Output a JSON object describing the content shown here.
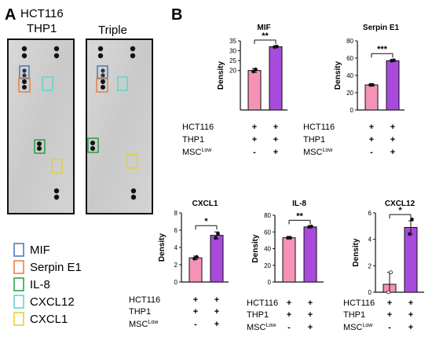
{
  "panels": {
    "a_label": "A",
    "b_label": "B"
  },
  "blots": [
    {
      "title_lines": [
        "HCT116",
        "THP1"
      ]
    },
    {
      "title_lines": [
        "Triple"
      ]
    }
  ],
  "legend": {
    "items": [
      {
        "label": "MIF",
        "color": "#4a7fc1"
      },
      {
        "label": "Serpin E1",
        "color": "#e8834a"
      },
      {
        "label": "IL-8",
        "color": "#2ea44f"
      },
      {
        "label": "CXCL12",
        "color": "#5fd6d6"
      },
      {
        "label": "CXCL1",
        "color": "#e6cf3c"
      }
    ]
  },
  "condition_rows": [
    {
      "label": "HCT116",
      "values": [
        "+",
        "+"
      ]
    },
    {
      "label": "THP1",
      "values": [
        "+",
        "+"
      ]
    },
    {
      "label": "MSC",
      "superscript": "Low",
      "values": [
        "-",
        "+"
      ]
    }
  ],
  "colors": {
    "bar_1": "#f592b8",
    "bar_2": "#a84bdc"
  },
  "chart_data": [
    {
      "type": "bar",
      "title": "MIF",
      "ylabel": "Density",
      "categories": [
        "HCT116 THP1",
        "HCT116 THP1 MSC Low"
      ],
      "values": [
        20,
        32
      ],
      "error": [
        1,
        0.2
      ],
      "points": [
        [
          19.5,
          20.5
        ],
        [
          31.9,
          32.1
        ]
      ],
      "ylim": [
        0,
        35
      ],
      "yticks": [
        20,
        25,
        30,
        35
      ],
      "significance": "**"
    },
    {
      "type": "bar",
      "title": "Serpin E1",
      "ylabel": "Density",
      "categories": [
        "HCT116 THP1",
        "HCT116 THP1 MSC Low"
      ],
      "values": [
        29,
        57
      ],
      "error": [
        0.5,
        1
      ],
      "points": [
        [
          29,
          29
        ],
        [
          57,
          57.5
        ]
      ],
      "ylim": [
        0,
        80
      ],
      "yticks": [
        0,
        20,
        40,
        60,
        80
      ],
      "significance": "***"
    },
    {
      "type": "bar",
      "title": "CXCL1",
      "ylabel": "Density",
      "categories": [
        "HCT116 THP1",
        "HCT116 THP1 MSC Low"
      ],
      "values": [
        2.8,
        5.4
      ],
      "error": [
        0.2,
        0.4
      ],
      "points": [
        [
          2.7,
          2.9
        ],
        [
          5.1,
          5.6
        ]
      ],
      "ylim": [
        0,
        8
      ],
      "yticks": [
        0,
        2,
        4,
        6,
        8
      ],
      "significance": "*"
    },
    {
      "type": "bar",
      "title": "IL-8",
      "ylabel": "Density",
      "categories": [
        "HCT116 THP1",
        "HCT116 THP1 MSC Low"
      ],
      "values": [
        53,
        66
      ],
      "error": [
        0.5,
        0.5
      ],
      "points": [
        [
          53,
          53
        ],
        [
          66,
          66.5
        ]
      ],
      "ylim": [
        0,
        80
      ],
      "yticks": [
        0,
        20,
        40,
        60,
        80
      ],
      "significance": "**"
    },
    {
      "type": "bar",
      "title": "CXCL12",
      "ylabel": "Density",
      "categories": [
        "HCT116 THP1",
        "HCT116 THP1 MSC Low"
      ],
      "values": [
        0.6,
        4.9
      ],
      "error": [
        0.9,
        0.5
      ],
      "points": [
        [
          0,
          1.5
        ],
        [
          4.4,
          5.5
        ]
      ],
      "ylim": [
        0,
        6
      ],
      "yticks": [
        0,
        2,
        4,
        6
      ],
      "significance": "*"
    }
  ]
}
